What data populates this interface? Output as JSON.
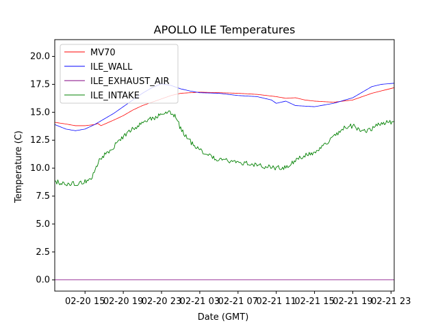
{
  "chart_data": {
    "type": "line",
    "title": "APOLLO ILE Temperatures",
    "xlabel": "Date (GMT)",
    "ylabel": "Temperature (C)",
    "x_start": "02-20 11:50",
    "x_end": "02-21 23:20",
    "x_ticks": [
      {
        "x": "02-20 15:00",
        "label": "02-20 15"
      },
      {
        "x": "02-20 19:00",
        "label": "02-20 19"
      },
      {
        "x": "02-20 23:00",
        "label": "02-20 23"
      },
      {
        "x": "02-21 03:00",
        "label": "02-21 03"
      },
      {
        "x": "02-21 07:00",
        "label": "02-21 07"
      },
      {
        "x": "02-21 11:00",
        "label": "02-21 11"
      },
      {
        "x": "02-21 15:00",
        "label": "02-21 15"
      },
      {
        "x": "02-21 19:00",
        "label": "02-21 19"
      },
      {
        "x": "02-21 23:00",
        "label": "02-21 23"
      }
    ],
    "ylim": [
      -1.0,
      21.5
    ],
    "y_ticks": [
      "0.0",
      "2.5",
      "5.0",
      "7.5",
      "10.0",
      "12.5",
      "15.0",
      "17.5",
      "20.0"
    ],
    "grid": false,
    "legend_position": "top-left",
    "series": [
      {
        "name": "MV70",
        "color": "#ff0000",
        "points": [
          [
            "02-20 11:50",
            14.1
          ],
          [
            "02-20 13:00",
            13.95
          ],
          [
            "02-20 14:00",
            13.8
          ],
          [
            "02-20 15:00",
            13.8
          ],
          [
            "02-20 16:00",
            13.9
          ],
          [
            "02-20 16:20",
            14.0
          ],
          [
            "02-20 16:40",
            13.8
          ],
          [
            "02-20 18:00",
            14.3
          ],
          [
            "02-20 19:00",
            14.7
          ],
          [
            "02-20 20:00",
            15.2
          ],
          [
            "02-20 21:00",
            15.6
          ],
          [
            "02-20 22:00",
            15.9
          ],
          [
            "02-20 23:00",
            16.2
          ],
          [
            "02-21 00:00",
            16.5
          ],
          [
            "02-21 01:00",
            16.7
          ],
          [
            "02-21 02:00",
            16.75
          ],
          [
            "02-21 03:00",
            16.8
          ],
          [
            "02-21 05:00",
            16.75
          ],
          [
            "02-21 07:00",
            16.7
          ],
          [
            "02-21 09:00",
            16.6
          ],
          [
            "02-21 11:00",
            16.4
          ],
          [
            "02-21 12:00",
            16.25
          ],
          [
            "02-21 13:00",
            16.3
          ],
          [
            "02-21 14:00",
            16.1
          ],
          [
            "02-21 15:00",
            16.0
          ],
          [
            "02-21 17:00",
            15.9
          ],
          [
            "02-21 19:00",
            16.1
          ],
          [
            "02-21 21:00",
            16.7
          ],
          [
            "02-21 23:20",
            17.2
          ]
        ]
      },
      {
        "name": "ILE_WALL",
        "color": "#0000ff",
        "points": [
          [
            "02-20 11:50",
            13.9
          ],
          [
            "02-20 13:00",
            13.5
          ],
          [
            "02-20 14:00",
            13.35
          ],
          [
            "02-20 15:00",
            13.5
          ],
          [
            "02-20 16:00",
            13.9
          ],
          [
            "02-20 17:00",
            14.4
          ],
          [
            "02-20 18:00",
            14.9
          ],
          [
            "02-20 19:00",
            15.5
          ],
          [
            "02-20 20:00",
            16.1
          ],
          [
            "02-20 21:00",
            16.7
          ],
          [
            "02-20 22:00",
            17.2
          ],
          [
            "02-20 23:00",
            17.55
          ],
          [
            "02-21 00:00",
            17.4
          ],
          [
            "02-21 01:00",
            17.1
          ],
          [
            "02-21 02:00",
            16.9
          ],
          [
            "02-21 03:00",
            16.75
          ],
          [
            "02-21 05:00",
            16.7
          ],
          [
            "02-21 07:00",
            16.5
          ],
          [
            "02-21 09:00",
            16.4
          ],
          [
            "02-21 10:30",
            16.1
          ],
          [
            "02-21 11:00",
            15.8
          ],
          [
            "02-21 12:00",
            16.0
          ],
          [
            "02-21 13:00",
            15.6
          ],
          [
            "02-21 15:00",
            15.5
          ],
          [
            "02-21 17:00",
            15.8
          ],
          [
            "02-21 19:00",
            16.3
          ],
          [
            "02-21 20:00",
            16.8
          ],
          [
            "02-21 21:00",
            17.3
          ],
          [
            "02-21 22:00",
            17.5
          ],
          [
            "02-21 23:20",
            17.6
          ]
        ]
      },
      {
        "name": "ILE_EXHAUST_AIR",
        "color": "#800080",
        "points": [
          [
            "02-20 11:50",
            0.0
          ],
          [
            "02-21 23:20",
            0.0
          ]
        ]
      },
      {
        "name": "ILE_INTAKE",
        "color": "#008000",
        "points": [
          [
            "02-20 11:50",
            8.8
          ],
          [
            "02-20 13:00",
            8.65
          ],
          [
            "02-20 14:00",
            8.6
          ],
          [
            "02-20 15:00",
            8.8
          ],
          [
            "02-20 15:45",
            9.2
          ],
          [
            "02-20 16:30",
            10.8
          ],
          [
            "02-20 17:30",
            11.5
          ],
          [
            "02-20 18:30",
            12.4
          ],
          [
            "02-20 19:30",
            13.2
          ],
          [
            "02-20 20:30",
            13.8
          ],
          [
            "02-20 21:30",
            14.3
          ],
          [
            "02-20 22:30",
            14.6
          ],
          [
            "02-20 23:00",
            14.9
          ],
          [
            "02-21 00:00",
            15.0
          ],
          [
            "02-21 00:30",
            14.6
          ],
          [
            "02-21 01:00",
            13.5
          ],
          [
            "02-21 02:00",
            12.4
          ],
          [
            "02-21 03:00",
            11.6
          ],
          [
            "02-21 04:00",
            11.1
          ],
          [
            "02-21 05:00",
            10.8
          ],
          [
            "02-21 06:00",
            10.7
          ],
          [
            "02-21 07:00",
            10.6
          ],
          [
            "02-21 08:00",
            10.4
          ],
          [
            "02-21 09:00",
            10.3
          ],
          [
            "02-21 10:00",
            10.1
          ],
          [
            "02-21 11:00",
            10.0
          ],
          [
            "02-21 12:00",
            10.1
          ],
          [
            "02-21 13:00",
            10.7
          ],
          [
            "02-21 14:00",
            11.1
          ],
          [
            "02-21 15:00",
            11.4
          ],
          [
            "02-21 16:00",
            12.0
          ],
          [
            "02-21 17:00",
            12.8
          ],
          [
            "02-21 18:00",
            13.6
          ],
          [
            "02-21 19:00",
            13.8
          ],
          [
            "02-21 20:00",
            13.3
          ],
          [
            "02-21 21:00",
            13.5
          ],
          [
            "02-21 22:00",
            14.0
          ],
          [
            "02-21 23:20",
            14.2
          ]
        ]
      }
    ]
  }
}
